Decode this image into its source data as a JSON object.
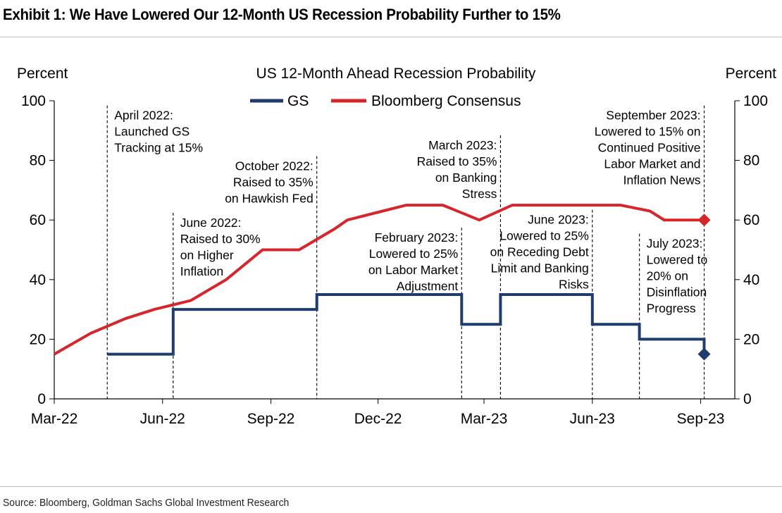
{
  "title": "Exhibit 1: We Have Lowered Our 12-Month US Recession Probability Further to 15%",
  "source": "Source: Bloomberg, Goldman Sachs Global Investment Research",
  "chart_data": {
    "type": "line",
    "title": "US 12-Month Ahead Recession Probability",
    "ylabel_left": "Percent",
    "ylabel_right": "Percent",
    "ylim": [
      0,
      100
    ],
    "yticks": [
      0,
      20,
      40,
      60,
      80,
      100
    ],
    "xlim": [
      "2022-03-01",
      "2023-09-30"
    ],
    "xticks": [
      {
        "date": "2022-03-01",
        "label": "Mar-22"
      },
      {
        "date": "2022-06-01",
        "label": "Jun-22"
      },
      {
        "date": "2022-09-01",
        "label": "Sep-22"
      },
      {
        "date": "2022-12-01",
        "label": "Dec-22"
      },
      {
        "date": "2023-03-01",
        "label": "Mar-23"
      },
      {
        "date": "2023-06-01",
        "label": "Jun-23"
      },
      {
        "date": "2023-09-01",
        "label": "Sep-23"
      }
    ],
    "legend": "top-center",
    "grid": false,
    "series": [
      {
        "name": "GS",
        "color": "#1f3c6e",
        "step": true,
        "end_marker": "diamond",
        "points": [
          {
            "x": "2022-04-15",
            "y": 15
          },
          {
            "x": "2022-06-10",
            "y": 15
          },
          {
            "x": "2022-06-10",
            "y": 30
          },
          {
            "x": "2022-10-10",
            "y": 30
          },
          {
            "x": "2022-10-10",
            "y": 35
          },
          {
            "x": "2023-02-10",
            "y": 35
          },
          {
            "x": "2023-02-10",
            "y": 25
          },
          {
            "x": "2023-03-15",
            "y": 25
          },
          {
            "x": "2023-03-15",
            "y": 35
          },
          {
            "x": "2023-06-01",
            "y": 35
          },
          {
            "x": "2023-06-01",
            "y": 25
          },
          {
            "x": "2023-07-11",
            "y": 25
          },
          {
            "x": "2023-07-11",
            "y": 20
          },
          {
            "x": "2023-09-04",
            "y": 20
          },
          {
            "x": "2023-09-04",
            "y": 15
          }
        ]
      },
      {
        "name": "Bloomberg Consensus",
        "color": "#d6262c",
        "step": false,
        "end_marker": "diamond",
        "points": [
          {
            "x": "2022-03-01",
            "y": 15
          },
          {
            "x": "2022-04-01",
            "y": 22
          },
          {
            "x": "2022-05-01",
            "y": 27
          },
          {
            "x": "2022-05-25",
            "y": 30
          },
          {
            "x": "2022-06-25",
            "y": 33
          },
          {
            "x": "2022-07-25",
            "y": 40
          },
          {
            "x": "2022-08-25",
            "y": 50
          },
          {
            "x": "2022-09-25",
            "y": 50
          },
          {
            "x": "2022-10-25",
            "y": 57
          },
          {
            "x": "2022-11-05",
            "y": 60
          },
          {
            "x": "2022-12-05",
            "y": 63
          },
          {
            "x": "2022-12-25",
            "y": 65
          },
          {
            "x": "2023-01-25",
            "y": 65
          },
          {
            "x": "2023-02-25",
            "y": 60
          },
          {
            "x": "2023-03-25",
            "y": 65
          },
          {
            "x": "2023-04-15",
            "y": 65
          },
          {
            "x": "2023-05-15",
            "y": 65
          },
          {
            "x": "2023-06-25",
            "y": 65
          },
          {
            "x": "2023-07-20",
            "y": 63
          },
          {
            "x": "2023-08-01",
            "y": 60
          },
          {
            "x": "2023-09-04",
            "y": 60
          }
        ]
      }
    ],
    "annotations": [
      {
        "date": "2022-04-15",
        "lines": [
          "April 2022:",
          "Launched GS",
          "Tracking at 15%"
        ],
        "side": "right",
        "y": 97
      },
      {
        "date": "2022-10-10",
        "lines": [
          "October 2022:",
          "Raised to 35%",
          "on Hawkish Fed"
        ],
        "side": "left",
        "y": 80
      },
      {
        "date": "2022-06-10",
        "lines": [
          "June 2022:",
          "Raised to 30%",
          "on Higher",
          "Inflation"
        ],
        "side": "right",
        "y": 61
      },
      {
        "date": "2023-02-10",
        "lines": [
          "February 2023:",
          "Lowered to 25%",
          "on Labor Market",
          "Adjustment"
        ],
        "side": "left",
        "y": 56
      },
      {
        "date": "2023-03-15",
        "lines": [
          "March 2023:",
          "Raised to 35%",
          "on Banking",
          "Stress"
        ],
        "side": "left",
        "y": 87
      },
      {
        "date": "2023-06-01",
        "lines": [
          "June 2023:",
          "Lowered to 25%",
          "on Receding Debt",
          "Limit and Banking",
          "Risks"
        ],
        "side": "left",
        "y": 62
      },
      {
        "date": "2023-09-04",
        "lines": [
          "September 2023:",
          "Lowered to 15% on",
          "Continued Positive",
          "Labor Market and",
          "Inflation News"
        ],
        "side": "left",
        "y": 97
      },
      {
        "date": "2023-07-11",
        "lines": [
          "July 2023:",
          "Lowered to",
          "20% on",
          "Disinflation",
          "Progress"
        ],
        "side": "right",
        "y": 54
      }
    ]
  }
}
